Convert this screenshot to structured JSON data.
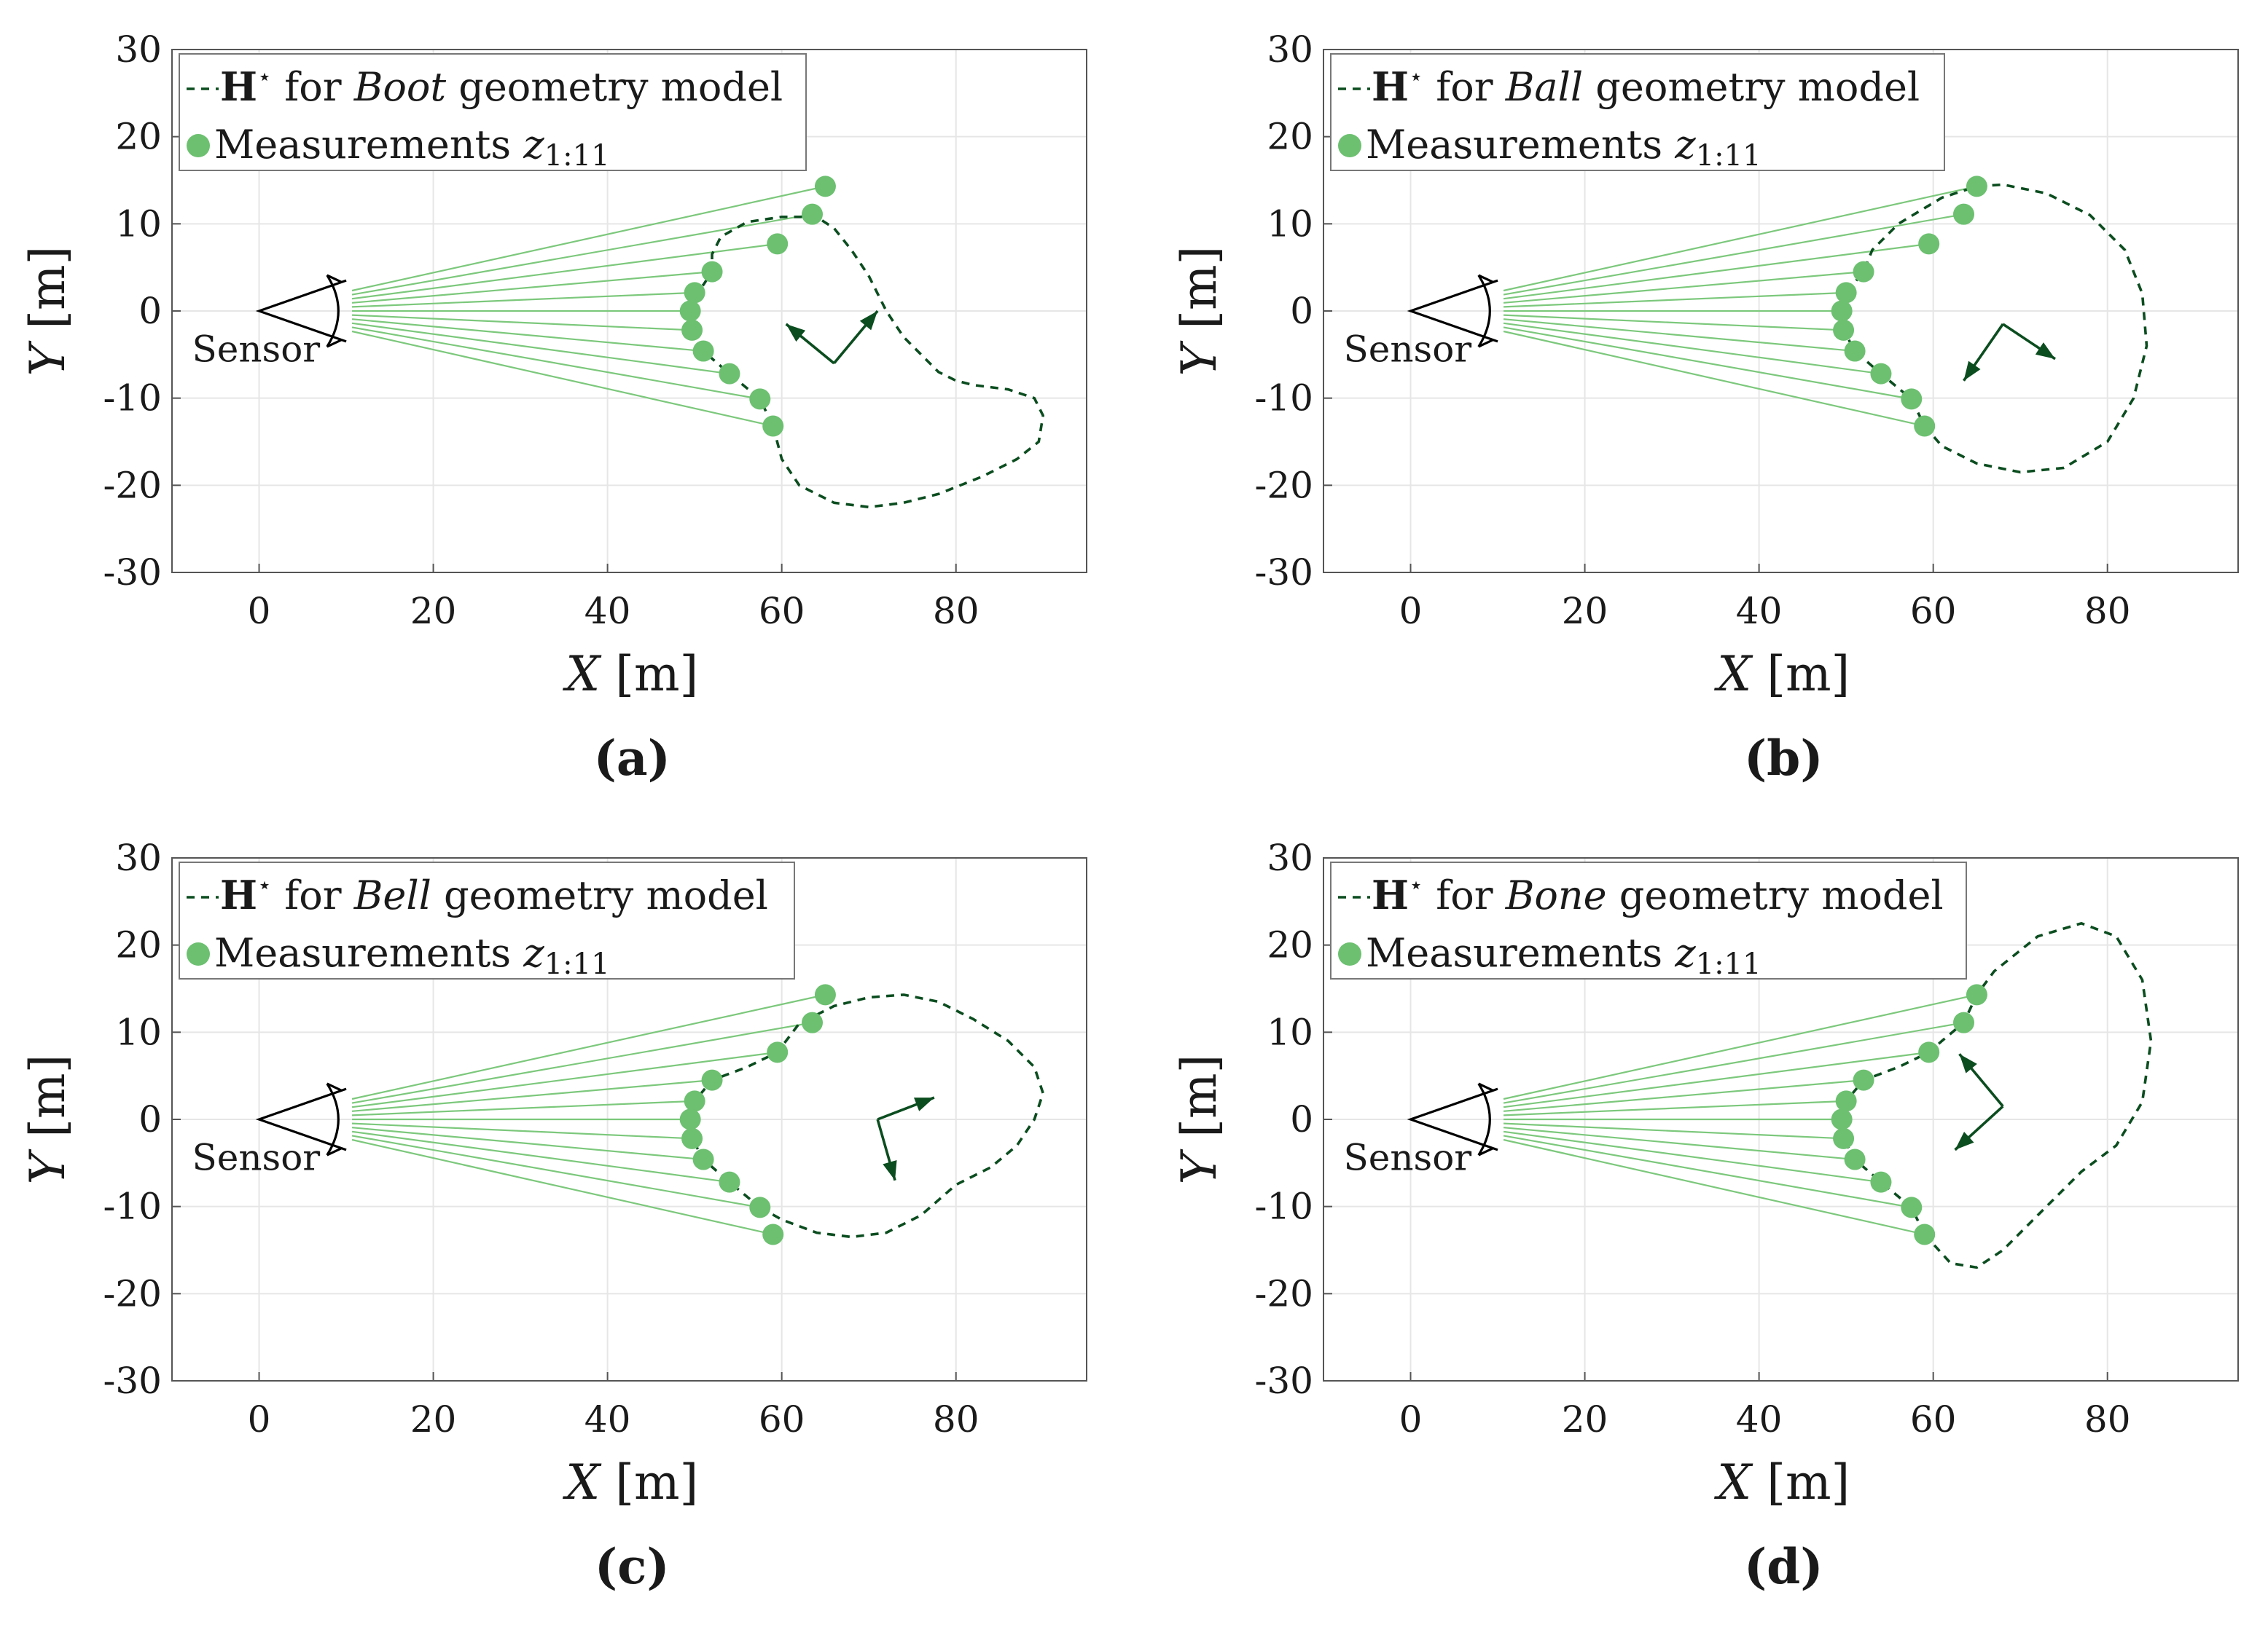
{
  "chart_data": [
    {
      "id": "a",
      "panel_label": "(a)",
      "type": "scatter",
      "legend": {
        "model_name": "Boot",
        "H_symbol": "H",
        "line_text_pre": "for",
        "line_text_post": "geometry model",
        "measurements_text": "Measurements",
        "z_symbol": "z",
        "z_sub": "1:11"
      },
      "xlabel_var": "X",
      "ylabel_var": "Y",
      "unit": "[m]",
      "xlim": [
        -10,
        95
      ],
      "ylim": [
        -30,
        30
      ],
      "xticks": [
        0,
        20,
        40,
        60,
        80
      ],
      "yticks": [
        -30,
        -20,
        -10,
        0,
        10,
        20,
        30
      ],
      "sensor_label": "Sensor",
      "measurements": [
        [
          65,
          14.3
        ],
        [
          63.5,
          11.1
        ],
        [
          59.5,
          7.7
        ],
        [
          52,
          4.5
        ],
        [
          50,
          2.1
        ],
        [
          49.5,
          0
        ],
        [
          49.7,
          -2.2
        ],
        [
          51,
          -4.6
        ],
        [
          54,
          -7.2
        ],
        [
          57.5,
          -10.1
        ],
        [
          59,
          -13.2
        ]
      ],
      "contour": [
        [
          59,
          -13.2
        ],
        [
          60,
          -17
        ],
        [
          62,
          -20
        ],
        [
          66,
          -22
        ],
        [
          70,
          -22.5
        ],
        [
          74,
          -22
        ],
        [
          78,
          -21
        ],
        [
          83,
          -19
        ],
        [
          87,
          -17
        ],
        [
          89.5,
          -15
        ],
        [
          90,
          -12
        ],
        [
          89,
          -10
        ],
        [
          86,
          -9
        ],
        [
          82,
          -8.5
        ],
        [
          80,
          -8
        ],
        [
          78,
          -7
        ],
        [
          76,
          -5
        ],
        [
          74,
          -3
        ],
        [
          72,
          0
        ],
        [
          70,
          4
        ],
        [
          68,
          7
        ],
        [
          66,
          9.5
        ],
        [
          64,
          10.8
        ],
        [
          60,
          10.8
        ],
        [
          56,
          10.2
        ],
        [
          53,
          8.5
        ],
        [
          52,
          6.5
        ],
        [
          52,
          4.5
        ],
        [
          51,
          3
        ],
        [
          50,
          2.1
        ],
        [
          49.5,
          0
        ],
        [
          49.7,
          -2.2
        ],
        [
          51,
          -4.6
        ],
        [
          54,
          -7.2
        ],
        [
          57.5,
          -10.1
        ],
        [
          59,
          -13.2
        ]
      ],
      "frame": {
        "origin": [
          66,
          -6
        ],
        "tip1": [
          60.5,
          -1.5
        ],
        "tip2": [
          71,
          0
        ]
      }
    },
    {
      "id": "b",
      "panel_label": "(b)",
      "type": "scatter",
      "legend": {
        "model_name": "Ball",
        "H_symbol": "H",
        "line_text_pre": "for",
        "line_text_post": "geometry model",
        "measurements_text": "Measurements",
        "z_symbol": "z",
        "z_sub": "1:11"
      },
      "xlabel_var": "X",
      "ylabel_var": "Y",
      "unit": "[m]",
      "xlim": [
        -10,
        95
      ],
      "ylim": [
        -30,
        30
      ],
      "xticks": [
        0,
        20,
        40,
        60,
        80
      ],
      "yticks": [
        -30,
        -20,
        -10,
        0,
        10,
        20,
        30
      ],
      "sensor_label": "Sensor",
      "measurements": [
        [
          65,
          14.3
        ],
        [
          63.5,
          11.1
        ],
        [
          59.5,
          7.7
        ],
        [
          52,
          4.5
        ],
        [
          50,
          2.1
        ],
        [
          49.5,
          0
        ],
        [
          49.7,
          -2.2
        ],
        [
          51,
          -4.6
        ],
        [
          54,
          -7.2
        ],
        [
          57.5,
          -10.1
        ],
        [
          59,
          -13.2
        ]
      ],
      "contour": [
        [
          59,
          -13.2
        ],
        [
          61,
          -15.5
        ],
        [
          65,
          -17.5
        ],
        [
          70,
          -18.5
        ],
        [
          75,
          -18
        ],
        [
          80,
          -15
        ],
        [
          83,
          -10
        ],
        [
          84.5,
          -4
        ],
        [
          84,
          2
        ],
        [
          82,
          7
        ],
        [
          78,
          11
        ],
        [
          73,
          13.5
        ],
        [
          68,
          14.5
        ],
        [
          65,
          14.3
        ],
        [
          61,
          13
        ],
        [
          56,
          10
        ],
        [
          53,
          7
        ],
        [
          52,
          4.5
        ],
        [
          50,
          2.1
        ],
        [
          49.5,
          0
        ],
        [
          49.7,
          -2.2
        ],
        [
          51,
          -4.6
        ],
        [
          54,
          -7.2
        ],
        [
          57.5,
          -10.1
        ],
        [
          59,
          -13.2
        ]
      ],
      "frame": {
        "origin": [
          68,
          -1.5
        ],
        "tip1": [
          63.5,
          -8
        ],
        "tip2": [
          74,
          -5.5
        ]
      }
    },
    {
      "id": "c",
      "panel_label": "(c)",
      "type": "scatter",
      "legend": {
        "model_name": "Bell",
        "H_symbol": "H",
        "line_text_pre": "for",
        "line_text_post": "geometry model",
        "measurements_text": "Measurements",
        "z_symbol": "z",
        "z_sub": "1:11"
      },
      "xlabel_var": "X",
      "ylabel_var": "Y",
      "unit": "[m]",
      "xlim": [
        -10,
        95
      ],
      "ylim": [
        -30,
        30
      ],
      "xticks": [
        0,
        20,
        40,
        60,
        80
      ],
      "yticks": [
        -30,
        -20,
        -10,
        0,
        10,
        20,
        30
      ],
      "sensor_label": "Sensor",
      "measurements": [
        [
          65,
          14.3
        ],
        [
          63.5,
          11.1
        ],
        [
          59.5,
          7.7
        ],
        [
          52,
          4.5
        ],
        [
          50,
          2.1
        ],
        [
          49.5,
          0
        ],
        [
          49.7,
          -2.2
        ],
        [
          51,
          -4.6
        ],
        [
          54,
          -7.2
        ],
        [
          57.5,
          -10.1
        ],
        [
          59,
          -13.2
        ]
      ],
      "contour": [
        [
          57.5,
          -10.1
        ],
        [
          60,
          -11.5
        ],
        [
          64,
          -13
        ],
        [
          68,
          -13.5
        ],
        [
          72,
          -13
        ],
        [
          76,
          -11
        ],
        [
          80,
          -7.5
        ],
        [
          84,
          -5.5
        ],
        [
          87,
          -3
        ],
        [
          89,
          0
        ],
        [
          90,
          3
        ],
        [
          89,
          6
        ],
        [
          86,
          9
        ],
        [
          82,
          11.5
        ],
        [
          78,
          13.5
        ],
        [
          74,
          14.3
        ],
        [
          70,
          14
        ],
        [
          66,
          13
        ],
        [
          62,
          11
        ],
        [
          59.5,
          7.7
        ],
        [
          56,
          6
        ],
        [
          52,
          4.5
        ],
        [
          50,
          2.1
        ],
        [
          49.5,
          0
        ],
        [
          49.7,
          -2.2
        ],
        [
          51,
          -4.6
        ],
        [
          54,
          -7.2
        ],
        [
          57.5,
          -10.1
        ]
      ],
      "frame": {
        "origin": [
          71,
          0
        ],
        "tip1": [
          77.5,
          2.5
        ],
        "tip2": [
          73,
          -7
        ]
      }
    },
    {
      "id": "d",
      "panel_label": "(d)",
      "type": "scatter",
      "legend": {
        "model_name": "Bone",
        "H_symbol": "H",
        "line_text_pre": "for",
        "line_text_post": "geometry model",
        "measurements_text": "Measurements",
        "z_symbol": "z",
        "z_sub": "1:11"
      },
      "xlabel_var": "X",
      "ylabel_var": "Y",
      "unit": "[m]",
      "xlim": [
        -10,
        95
      ],
      "ylim": [
        -30,
        30
      ],
      "xticks": [
        0,
        20,
        40,
        60,
        80
      ],
      "yticks": [
        -30,
        -20,
        -10,
        0,
        10,
        20,
        30
      ],
      "sensor_label": "Sensor",
      "measurements": [
        [
          65,
          14.3
        ],
        [
          63.5,
          11.1
        ],
        [
          59.5,
          7.7
        ],
        [
          52,
          4.5
        ],
        [
          50,
          2.1
        ],
        [
          49.5,
          0
        ],
        [
          49.7,
          -2.2
        ],
        [
          51,
          -4.6
        ],
        [
          54,
          -7.2
        ],
        [
          57.5,
          -10.1
        ],
        [
          59,
          -13.2
        ]
      ],
      "contour": [
        [
          59,
          -13.2
        ],
        [
          62,
          -16.5
        ],
        [
          65,
          -17
        ],
        [
          68,
          -15
        ],
        [
          71,
          -12
        ],
        [
          74,
          -9
        ],
        [
          77,
          -6
        ],
        [
          81,
          -3
        ],
        [
          84,
          2
        ],
        [
          85,
          9
        ],
        [
          84,
          16
        ],
        [
          81,
          21
        ],
        [
          77,
          22.5
        ],
        [
          72,
          21
        ],
        [
          67,
          17
        ],
        [
          65,
          14.3
        ],
        [
          63.5,
          11.1
        ],
        [
          61,
          9
        ],
        [
          59.5,
          7.7
        ],
        [
          56,
          6
        ],
        [
          52,
          4.5
        ],
        [
          50,
          2.1
        ],
        [
          49.5,
          0
        ],
        [
          49.7,
          -2.2
        ],
        [
          51,
          -4.6
        ],
        [
          54,
          -7.2
        ],
        [
          57.5,
          -10.1
        ],
        [
          59,
          -13.2
        ]
      ],
      "frame": {
        "origin": [
          68,
          1.5
        ],
        "tip1": [
          63,
          7.5
        ],
        "tip2": [
          62.5,
          -3.5
        ]
      }
    }
  ],
  "colors": {
    "measurement": "#6cc070",
    "ray": "#7cc87c",
    "contour": "#0b4d1f",
    "axis": "#555555",
    "grid": "#e6e6e6",
    "text": "#1a1a1a"
  }
}
